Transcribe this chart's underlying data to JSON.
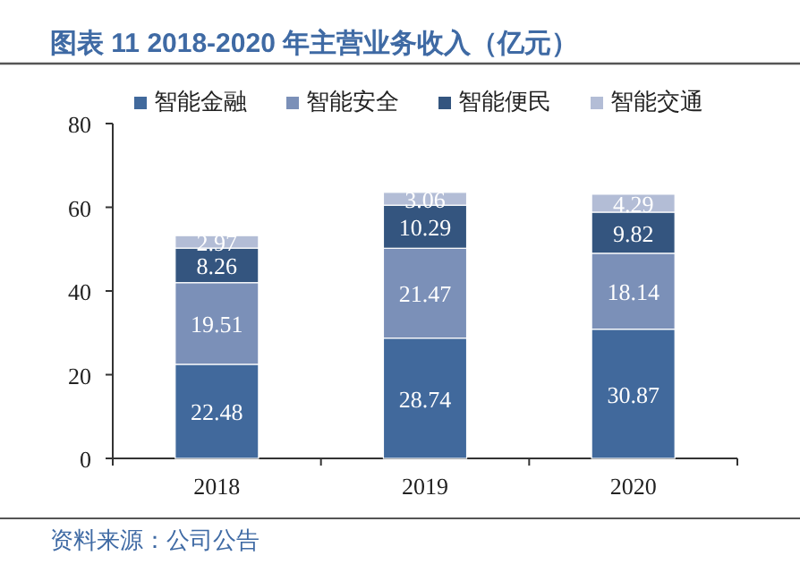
{
  "chart_data": {
    "type": "bar",
    "title": "图表 11 2018-2020 年主营业务收入（亿元）",
    "categories": [
      "2018",
      "2019",
      "2020"
    ],
    "series": [
      {
        "name": "智能金融",
        "color": "#41699c",
        "values": [
          22.48,
          28.74,
          30.87
        ]
      },
      {
        "name": "智能安全",
        "color": "#7b90b8",
        "values": [
          19.51,
          21.47,
          18.14
        ]
      },
      {
        "name": "智能便民",
        "color": "#34557f",
        "values": [
          8.26,
          10.29,
          9.82
        ]
      },
      {
        "name": "智能交通",
        "color": "#b3bdd6",
        "values": [
          2.97,
          3.06,
          4.29
        ]
      }
    ],
    "stacked": true,
    "ylim": [
      0,
      80
    ],
    "yticks": [
      0,
      20,
      40,
      60,
      80
    ],
    "data_labels": true,
    "legend": "top",
    "grid": false,
    "annotations": [
      "资料来源：公司公告"
    ]
  }
}
